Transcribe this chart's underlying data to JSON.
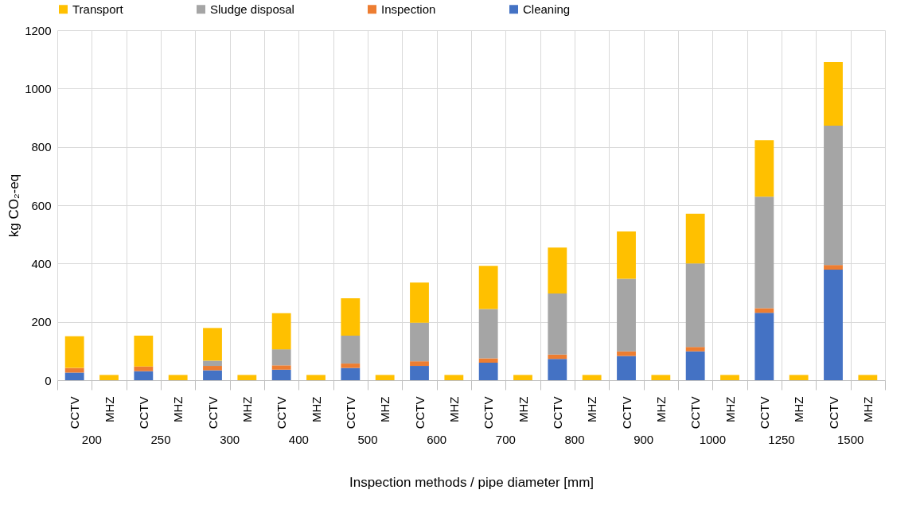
{
  "chart_data": {
    "type": "bar",
    "stacked": true,
    "xlabel": "Inspection methods / pipe diameter [mm]",
    "ylabel": "kg CO₂-eq",
    "categories": [
      "CCTV",
      "MHZ",
      "CCTV",
      "MHZ",
      "CCTV",
      "MHZ",
      "CCTV",
      "MHZ",
      "CCTV",
      "MHZ",
      "CCTV",
      "MHZ",
      "CCTV",
      "MHZ",
      "CCTV",
      "MHZ",
      "CCTV",
      "MHZ",
      "CCTV",
      "MHZ",
      "CCTV",
      "MHZ",
      "CCTV",
      "MHZ"
    ],
    "annotations": [
      "200",
      "250",
      "300",
      "400",
      "500",
      "600",
      "700",
      "800",
      "900",
      "1000",
      "1250",
      "1500"
    ],
    "series": [
      {
        "name": "Cleaning",
        "color": "#4472c4",
        "values": [
          26,
          0,
          31,
          0,
          34,
          0,
          36,
          0,
          42,
          0,
          49,
          0,
          60,
          0,
          73,
          0,
          83,
          0,
          99,
          0,
          231,
          0,
          379,
          0
        ]
      },
      {
        "name": "Inspection",
        "color": "#ed7d31",
        "values": [
          16,
          0,
          16,
          0,
          15,
          0,
          15,
          0,
          15,
          0,
          16,
          0,
          15,
          0,
          15,
          0,
          16,
          0,
          15,
          0,
          16,
          0,
          16,
          0
        ]
      },
      {
        "name": "Sludge disposal",
        "color": "#a5a5a5",
        "values": [
          0,
          0,
          0,
          0,
          18,
          0,
          55,
          0,
          96,
          0,
          132,
          0,
          169,
          0,
          209,
          0,
          249,
          0,
          286,
          0,
          382,
          0,
          478,
          0
        ]
      },
      {
        "name": "Transport",
        "color": "#ffc000",
        "values": [
          109,
          18,
          106,
          18,
          112,
          18,
          124,
          18,
          128,
          18,
          138,
          18,
          148,
          18,
          158,
          18,
          162,
          18,
          171,
          18,
          194,
          18,
          218,
          18
        ]
      }
    ],
    "ylim": [
      0,
      1200
    ],
    "yticks": [
      0,
      200,
      400,
      600,
      800,
      1000,
      1200
    ],
    "grid": true,
    "legend": "top"
  }
}
